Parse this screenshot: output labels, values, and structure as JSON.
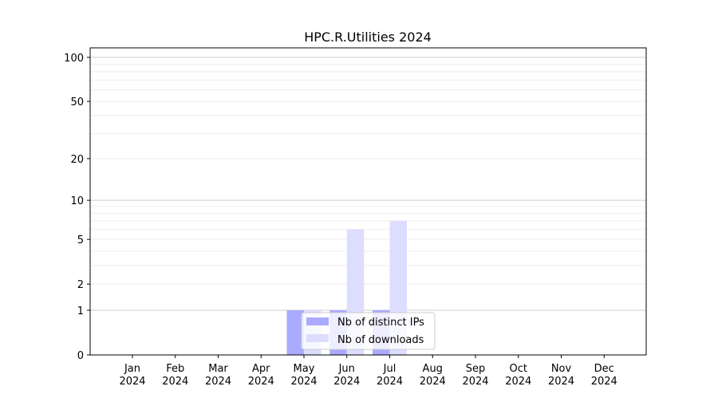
{
  "chart_data": {
    "type": "bar",
    "title": "HPC.R.Utilities 2024",
    "xlabel": "",
    "ylabel": "",
    "yscale": "log(1+y)",
    "ylim": [
      0,
      116
    ],
    "yticks": [
      0,
      1,
      2,
      5,
      10,
      20,
      50,
      100
    ],
    "grid": true,
    "legend_position": "lower-center",
    "categories": [
      "Jan\n2024",
      "Feb\n2024",
      "Mar\n2024",
      "Apr\n2024",
      "May\n2024",
      "Jun\n2024",
      "Jul\n2024",
      "Aug\n2024",
      "Sep\n2024",
      "Oct\n2024",
      "Nov\n2024",
      "Dec\n2024"
    ],
    "series": [
      {
        "name": "Nb of distinct IPs",
        "color": "#aaaaff",
        "values": [
          0,
          0,
          0,
          0,
          1,
          1,
          1,
          0,
          0,
          0,
          0,
          0
        ]
      },
      {
        "name": "Nb of downloads",
        "color": "#ddddff",
        "values": [
          0,
          0,
          0,
          0,
          1,
          6,
          7,
          0,
          0,
          0,
          0,
          0
        ]
      }
    ]
  }
}
